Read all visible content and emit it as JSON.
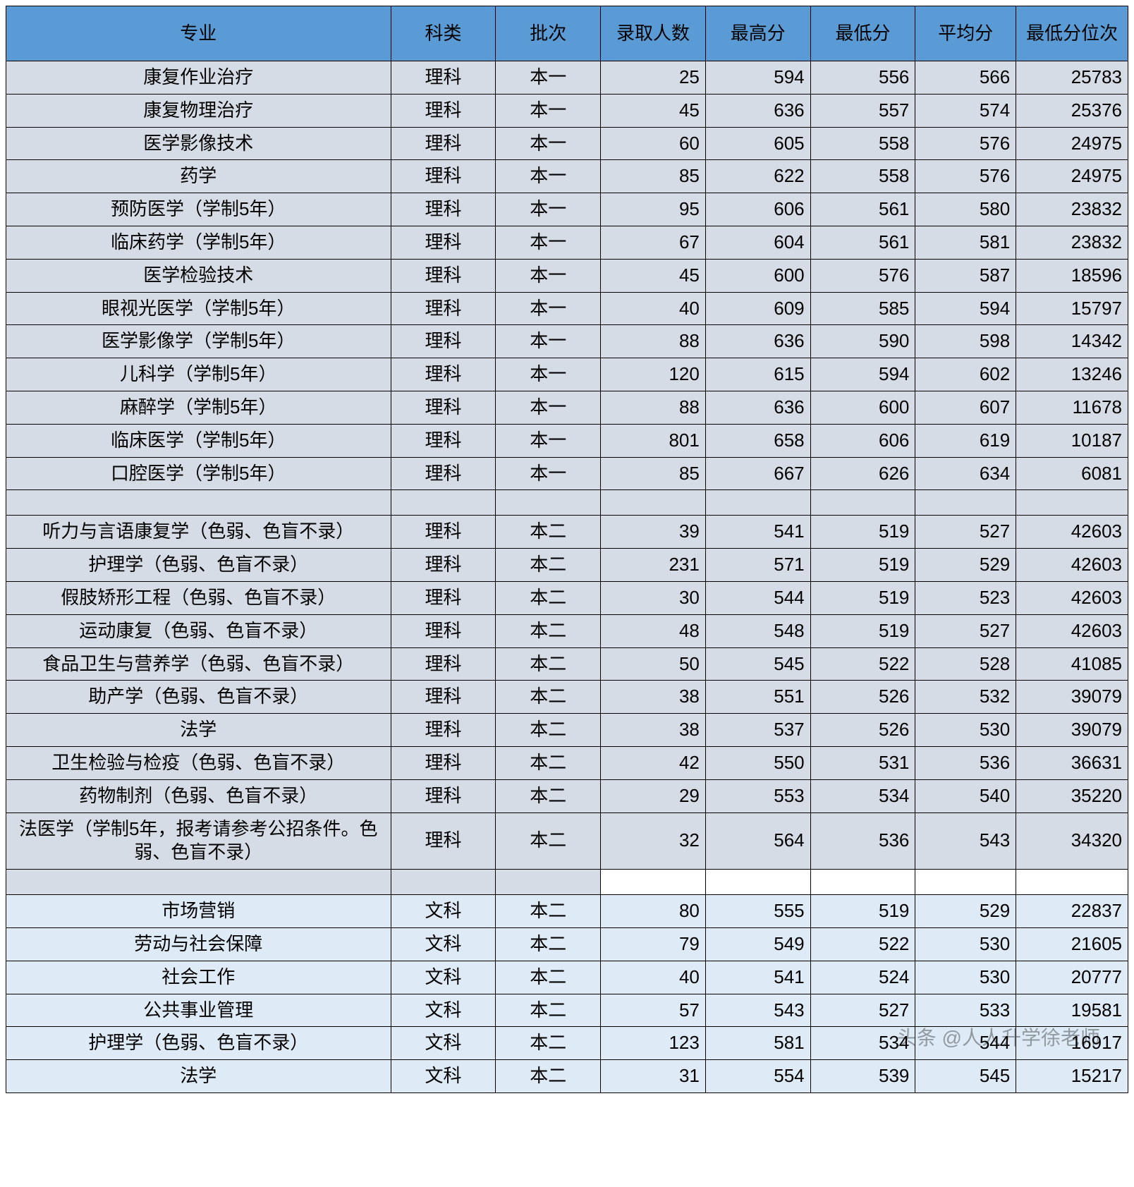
{
  "header_row_bg": "#5b9bd5",
  "science_row_bg": "#d6dce5",
  "liberal_row_bg": "#deeaf6",
  "border_color": "#000000",
  "columns": [
    "专业",
    "科类",
    "批次",
    "录取人数",
    "最高分",
    "最低分",
    "平均分",
    "最低分位次"
  ],
  "watermark": "头条 @人人升学徐老师",
  "rows": [
    {
      "type": "sci",
      "major": "康复作业治疗",
      "cat": "理科",
      "batch": "本一",
      "num": 25,
      "max": 594,
      "min": 556,
      "avg": 566,
      "rank": 25783
    },
    {
      "type": "sci",
      "major": "康复物理治疗",
      "cat": "理科",
      "batch": "本一",
      "num": 45,
      "max": 636,
      "min": 557,
      "avg": 574,
      "rank": 25376
    },
    {
      "type": "sci",
      "major": "医学影像技术",
      "cat": "理科",
      "batch": "本一",
      "num": 60,
      "max": 605,
      "min": 558,
      "avg": 576,
      "rank": 24975
    },
    {
      "type": "sci",
      "major": "药学",
      "cat": "理科",
      "batch": "本一",
      "num": 85,
      "max": 622,
      "min": 558,
      "avg": 576,
      "rank": 24975
    },
    {
      "type": "sci",
      "major": "预防医学（学制5年）",
      "cat": "理科",
      "batch": "本一",
      "num": 95,
      "max": 606,
      "min": 561,
      "avg": 580,
      "rank": 23832
    },
    {
      "type": "sci",
      "major": "临床药学（学制5年）",
      "cat": "理科",
      "batch": "本一",
      "num": 67,
      "max": 604,
      "min": 561,
      "avg": 581,
      "rank": 23832
    },
    {
      "type": "sci",
      "major": "医学检验技术",
      "cat": "理科",
      "batch": "本一",
      "num": 45,
      "max": 600,
      "min": 576,
      "avg": 587,
      "rank": 18596
    },
    {
      "type": "sci",
      "major": "眼视光医学（学制5年）",
      "cat": "理科",
      "batch": "本一",
      "num": 40,
      "max": 609,
      "min": 585,
      "avg": 594,
      "rank": 15797
    },
    {
      "type": "sci",
      "major": "医学影像学（学制5年）",
      "cat": "理科",
      "batch": "本一",
      "num": 88,
      "max": 636,
      "min": 590,
      "avg": 598,
      "rank": 14342
    },
    {
      "type": "sci",
      "major": "儿科学（学制5年）",
      "cat": "理科",
      "batch": "本一",
      "num": 120,
      "max": 615,
      "min": 594,
      "avg": 602,
      "rank": 13246
    },
    {
      "type": "sci",
      "major": "麻醉学（学制5年）",
      "cat": "理科",
      "batch": "本一",
      "num": 88,
      "max": 636,
      "min": 600,
      "avg": 607,
      "rank": 11678
    },
    {
      "type": "sci",
      "major": "临床医学（学制5年）",
      "cat": "理科",
      "batch": "本一",
      "num": 801,
      "max": 658,
      "min": 606,
      "avg": 619,
      "rank": 10187
    },
    {
      "type": "sci",
      "major": "口腔医学（学制5年）",
      "cat": "理科",
      "batch": "本一",
      "num": 85,
      "max": 667,
      "min": 626,
      "avg": 634,
      "rank": 6081
    },
    {
      "type": "sci-spacer"
    },
    {
      "type": "sci",
      "major": "听力与言语康复学（色弱、色盲不录）",
      "cat": "理科",
      "batch": "本二",
      "num": 39,
      "max": 541,
      "min": 519,
      "avg": 527,
      "rank": 42603
    },
    {
      "type": "sci",
      "major": "护理学（色弱、色盲不录）",
      "cat": "理科",
      "batch": "本二",
      "num": 231,
      "max": 571,
      "min": 519,
      "avg": 529,
      "rank": 42603
    },
    {
      "type": "sci",
      "major": "假肢矫形工程（色弱、色盲不录）",
      "cat": "理科",
      "batch": "本二",
      "num": 30,
      "max": 544,
      "min": 519,
      "avg": 523,
      "rank": 42603
    },
    {
      "type": "sci",
      "major": "运动康复（色弱、色盲不录）",
      "cat": "理科",
      "batch": "本二",
      "num": 48,
      "max": 548,
      "min": 519,
      "avg": 527,
      "rank": 42603
    },
    {
      "type": "sci",
      "major": "食品卫生与营养学（色弱、色盲不录）",
      "cat": "理科",
      "batch": "本二",
      "num": 50,
      "max": 545,
      "min": 522,
      "avg": 528,
      "rank": 41085
    },
    {
      "type": "sci",
      "major": "助产学（色弱、色盲不录）",
      "cat": "理科",
      "batch": "本二",
      "num": 38,
      "max": 551,
      "min": 526,
      "avg": 532,
      "rank": 39079
    },
    {
      "type": "sci",
      "major": "法学",
      "cat": "理科",
      "batch": "本二",
      "num": 38,
      "max": 537,
      "min": 526,
      "avg": 530,
      "rank": 39079
    },
    {
      "type": "sci",
      "major": "卫生检验与检疫（色弱、色盲不录）",
      "cat": "理科",
      "batch": "本二",
      "num": 42,
      "max": 550,
      "min": 531,
      "avg": 536,
      "rank": 36631
    },
    {
      "type": "sci",
      "major": "药物制剂（色弱、色盲不录）",
      "cat": "理科",
      "batch": "本二",
      "num": 29,
      "max": 553,
      "min": 534,
      "avg": 540,
      "rank": 35220
    },
    {
      "type": "sci",
      "major": "法医学（学制5年，报考请参考公招条件。色弱、色盲不录）",
      "cat": "理科",
      "batch": "本二",
      "num": 32,
      "max": 564,
      "min": 536,
      "avg": 543,
      "rank": 34320
    },
    {
      "type": "mixed-spacer"
    },
    {
      "type": "lib",
      "major": "市场营销",
      "cat": "文科",
      "batch": "本二",
      "num": 80,
      "max": 555,
      "min": 519,
      "avg": 529,
      "rank": 22837
    },
    {
      "type": "lib",
      "major": "劳动与社会保障",
      "cat": "文科",
      "batch": "本二",
      "num": 79,
      "max": 549,
      "min": 522,
      "avg": 530,
      "rank": 21605
    },
    {
      "type": "lib",
      "major": "社会工作",
      "cat": "文科",
      "batch": "本二",
      "num": 40,
      "max": 541,
      "min": 524,
      "avg": 530,
      "rank": 20777
    },
    {
      "type": "lib",
      "major": "公共事业管理",
      "cat": "文科",
      "batch": "本二",
      "num": 57,
      "max": 543,
      "min": 527,
      "avg": 533,
      "rank": 19581
    },
    {
      "type": "lib",
      "major": "护理学（色弱、色盲不录）",
      "cat": "文科",
      "batch": "本二",
      "num": 123,
      "max": 581,
      "min": 534,
      "avg": 544,
      "rank": 16917
    },
    {
      "type": "lib",
      "major": "法学",
      "cat": "文科",
      "batch": "本二",
      "num": 31,
      "max": 554,
      "min": 539,
      "avg": 545,
      "rank": 15217
    }
  ]
}
